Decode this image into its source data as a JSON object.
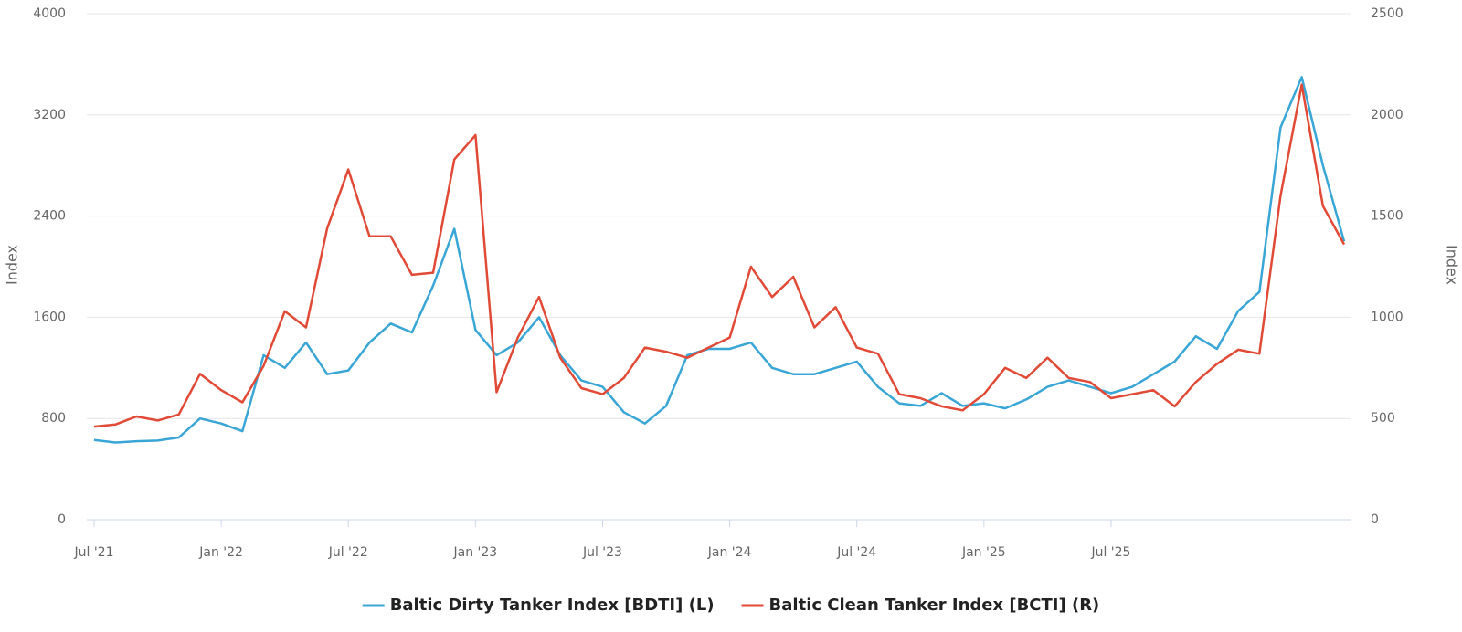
{
  "chart_data": {
    "type": "line",
    "x": [
      "2021-07",
      "2021-08",
      "2021-09",
      "2021-10",
      "2021-11",
      "2021-12",
      "2022-01",
      "2022-02",
      "2022-03",
      "2022-04",
      "2022-05",
      "2022-06",
      "2022-07",
      "2022-08",
      "2022-09",
      "2022-10",
      "2022-11",
      "2022-12",
      "2023-01",
      "2023-02",
      "2023-03",
      "2023-04",
      "2023-05",
      "2023-06",
      "2023-07",
      "2023-08",
      "2023-09",
      "2023-10",
      "2023-11",
      "2023-12",
      "2024-01",
      "2024-02",
      "2024-03",
      "2024-04",
      "2024-05",
      "2024-06",
      "2024-07",
      "2024-08",
      "2024-09",
      "2024-10",
      "2024-11",
      "2024-12",
      "2025-01",
      "2025-02",
      "2025-03",
      "2025-04",
      "2025-05",
      "2025-06",
      "2025-07",
      "2025-08",
      "2025-09",
      "2025-10",
      "2025-11",
      "2025-12",
      "2026-01",
      "2026-02",
      "2026-03",
      "2026-04",
      "2026-05",
      "2026-06"
    ],
    "series": [
      {
        "name": "Baltic Dirty Tanker Index [BDTI] (L)",
        "color": "#3aa6d6",
        "axis": "y",
        "values": [
          630,
          610,
          620,
          625,
          650,
          800,
          760,
          700,
          1300,
          1200,
          1400,
          1150,
          1180,
          1400,
          1550,
          1480,
          1850,
          2300,
          1500,
          1300,
          1400,
          1600,
          1300,
          1100,
          1050,
          850,
          760,
          900,
          1300,
          1350,
          1350,
          1400,
          1200,
          1150,
          1150,
          1200,
          1250,
          1050,
          920,
          900,
          1000,
          900,
          920,
          880,
          950,
          1050,
          1100,
          1050,
          1000,
          1050,
          1150,
          1250,
          1450,
          1350,
          1650,
          1800,
          3100,
          3500,
          2800,
          2200
        ]
      },
      {
        "name": "Baltic Clean Tanker Index [BCTI] (R)",
        "color": "#e04a36",
        "axis": "y2",
        "values": [
          460,
          470,
          510,
          490,
          520,
          720,
          640,
          580,
          760,
          1030,
          950,
          1440,
          1730,
          1400,
          1400,
          1210,
          1220,
          1780,
          1900,
          630,
          900,
          1100,
          800,
          650,
          620,
          700,
          850,
          830,
          800,
          850,
          900,
          1250,
          1100,
          1200,
          950,
          1050,
          850,
          820,
          620,
          600,
          560,
          540,
          620,
          750,
          700,
          800,
          700,
          680,
          600,
          620,
          640,
          560,
          680,
          770,
          840,
          820,
          1600,
          2150,
          1550,
          1360
        ]
      }
    ],
    "xlim": [
      "2021-07",
      "2026-06"
    ],
    "xticks": [
      {
        "value": "2021-07",
        "label": "Jul '21"
      },
      {
        "value": "2022-01",
        "label": "Jan '22"
      },
      {
        "value": "2022-07",
        "label": "Jul '22"
      },
      {
        "value": "2023-01",
        "label": "Jan '23"
      },
      {
        "value": "2023-07",
        "label": "Jul '23"
      },
      {
        "value": "2024-01",
        "label": "Jan '24"
      },
      {
        "value": "2024-07",
        "label": "Jul '24"
      },
      {
        "value": "2025-01",
        "label": "Jan '25"
      },
      {
        "value": "2025-07",
        "label": "Jul '25"
      }
    ],
    "ylim": [
      0,
      4000
    ],
    "yticks": [
      0,
      800,
      1600,
      2400,
      3200,
      4000
    ],
    "y2lim": [
      0,
      2500
    ],
    "y2ticks": [
      0,
      500,
      1000,
      1500,
      2000,
      2500
    ],
    "ylabel": "Index",
    "y2label": "Index",
    "grid": true,
    "legend": "bottom"
  }
}
